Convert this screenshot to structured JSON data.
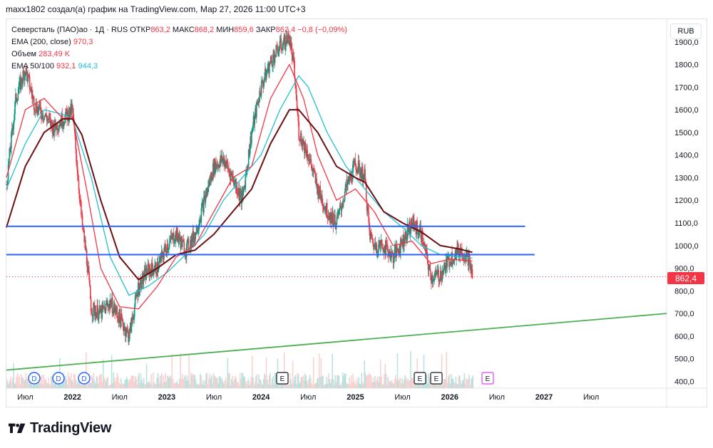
{
  "caption": "maxx1802 создал(а) график на TradingView.com, Мар 27, 2026 11:00 UTC+3",
  "legend": {
    "symbol": "Северсталь (ПАО)ао · 1Д · RUS",
    "open_label": "ОТКР",
    "open": "863,2",
    "high_label": "МАКС",
    "high": "868,2",
    "low_label": "МИН",
    "low": "859,6",
    "close_label": "ЗАКР",
    "close": "862,4",
    "change": "−0,8 (−0,09%)",
    "ema200_label": "EMA (200, close)",
    "ema200": "970,3",
    "volume_label": "Объем",
    "volume": "283,49 K",
    "ema50_100_label": "EMA 50/100",
    "ema50": "932,1",
    "ema100": "944,3"
  },
  "currency_button": "RUB",
  "last_price_tag": "862,4",
  "brand_text": "TradingView",
  "colors": {
    "price_up": "#089981",
    "price_down": "#f23645",
    "ema50": "#f23645",
    "ema100": "#22c0d6",
    "ema200": "#6d0f12",
    "level": "#2962ff",
    "trend": "#4caf50"
  },
  "event_markers": [
    {
      "label": "D",
      "x_label": "Jul 2021 area"
    },
    {
      "label": "D",
      "x_label": "Oct 2021 area"
    },
    {
      "label": "D",
      "x_label": "Dec 2021 area"
    },
    {
      "label": "E",
      "x_label": "Jul 2024 area"
    },
    {
      "label": "E",
      "x_label": "Oct 2025 area"
    },
    {
      "label": "E",
      "x_label": "Nov 2025 area"
    },
    {
      "label": "E",
      "x_label": "Mar 2026 area"
    }
  ],
  "chart_data": {
    "type": "line",
    "title": "Северсталь (ПАО)ао · 1Д · RUS",
    "y_axis": {
      "ticks": [
        "400,0",
        "500,0",
        "600,0",
        "700,0",
        "800,0",
        "900,0",
        "1000,0",
        "1100,0",
        "1200,0",
        "1300,0",
        "1400,0",
        "1500,0",
        "1600,0",
        "1700,0",
        "1800,0",
        "1900,0"
      ],
      "tick_values": [
        400,
        500,
        600,
        700,
        800,
        900,
        1000,
        1100,
        1200,
        1300,
        1400,
        1500,
        1600,
        1700,
        1800,
        1900
      ],
      "range": [
        370,
        2000
      ],
      "scale": "linear"
    },
    "x_axis": {
      "range": [
        2021.3,
        2028.3
      ],
      "ticks": [
        {
          "label": "Июл",
          "t": 2021.5,
          "year": false
        },
        {
          "label": "2022",
          "t": 2022.0,
          "year": true
        },
        {
          "label": "Июл",
          "t": 2022.5,
          "year": false
        },
        {
          "label": "2023",
          "t": 2023.0,
          "year": true
        },
        {
          "label": "Июл",
          "t": 2023.5,
          "year": false
        },
        {
          "label": "2024",
          "t": 2024.0,
          "year": true
        },
        {
          "label": "Июл",
          "t": 2024.5,
          "year": false
        },
        {
          "label": "2025",
          "t": 2025.0,
          "year": true
        },
        {
          "label": "Июл",
          "t": 2025.5,
          "year": false
        },
        {
          "label": "2026",
          "t": 2026.0,
          "year": true
        },
        {
          "label": "Июл",
          "t": 2026.5,
          "year": false
        },
        {
          "label": "2027",
          "t": 2027.0,
          "year": true
        },
        {
          "label": "Июл",
          "t": 2027.5,
          "year": false
        }
      ]
    },
    "series": [
      {
        "name": "Close",
        "t": [
          2021.3,
          2021.4,
          2021.5,
          2021.6,
          2021.7,
          2021.8,
          2021.9,
          2022.0,
          2022.1,
          2022.15,
          2022.2,
          2022.3,
          2022.4,
          2022.5,
          2022.6,
          2022.7,
          2022.8,
          2022.9,
          2023.0,
          2023.1,
          2023.2,
          2023.3,
          2023.4,
          2023.5,
          2023.6,
          2023.7,
          2023.8,
          2023.9,
          2024.0,
          2024.1,
          2024.2,
          2024.3,
          2024.35,
          2024.4,
          2024.5,
          2024.6,
          2024.7,
          2024.8,
          2024.9,
          2025.0,
          2025.1,
          2025.15,
          2025.2,
          2025.3,
          2025.4,
          2025.5,
          2025.6,
          2025.7,
          2025.8,
          2025.9,
          2026.0,
          2026.1,
          2026.15,
          2026.2,
          2026.24
        ],
        "values": [
          1270,
          1650,
          1780,
          1620,
          1580,
          1520,
          1560,
          1600,
          1100,
          950,
          720,
          700,
          750,
          680,
          600,
          820,
          890,
          900,
          1000,
          1050,
          980,
          1050,
          1200,
          1350,
          1380,
          1300,
          1200,
          1500,
          1700,
          1810,
          1880,
          1920,
          1780,
          1500,
          1400,
          1250,
          1150,
          1100,
          1250,
          1360,
          1300,
          1050,
          1000,
          1000,
          950,
          1020,
          1100,
          1050,
          860,
          870,
          940,
          980,
          970,
          940,
          862.4
        ]
      },
      {
        "name": "EMA 50",
        "t": [
          2021.3,
          2021.5,
          2021.7,
          2021.9,
          2022.0,
          2022.15,
          2022.3,
          2022.5,
          2022.7,
          2022.9,
          2023.1,
          2023.3,
          2023.5,
          2023.7,
          2023.9,
          2024.1,
          2024.3,
          2024.45,
          2024.6,
          2024.8,
          2025.0,
          2025.2,
          2025.4,
          2025.6,
          2025.8,
          2026.0,
          2026.24
        ],
        "values": [
          1300,
          1600,
          1650,
          1560,
          1570,
          1250,
          900,
          730,
          720,
          820,
          950,
          1000,
          1150,
          1300,
          1350,
          1650,
          1800,
          1650,
          1400,
          1200,
          1250,
          1150,
          1000,
          1020,
          920,
          940,
          932.1
        ]
      },
      {
        "name": "EMA 100",
        "t": [
          2021.3,
          2021.5,
          2021.7,
          2021.9,
          2022.0,
          2022.2,
          2022.4,
          2022.6,
          2022.8,
          2023.0,
          2023.2,
          2023.4,
          2023.6,
          2023.8,
          2024.0,
          2024.2,
          2024.4,
          2024.5,
          2024.7,
          2024.9,
          2025.1,
          2025.3,
          2025.5,
          2025.7,
          2025.9,
          2026.1,
          2026.24
        ],
        "values": [
          1250,
          1450,
          1600,
          1580,
          1560,
          1300,
          950,
          780,
          820,
          880,
          960,
          1050,
          1200,
          1300,
          1400,
          1600,
          1750,
          1700,
          1500,
          1350,
          1250,
          1150,
          1080,
          1000,
          960,
          950,
          944.3
        ]
      },
      {
        "name": "EMA 200",
        "t": [
          2021.3,
          2021.5,
          2021.7,
          2021.9,
          2022.0,
          2022.1,
          2022.3,
          2022.5,
          2022.7,
          2022.9,
          2023.1,
          2023.3,
          2023.5,
          2023.7,
          2023.9,
          2024.1,
          2024.3,
          2024.4,
          2024.6,
          2024.8,
          2025.0,
          2025.1,
          2025.3,
          2025.5,
          2025.7,
          2025.9,
          2026.1,
          2026.24
        ],
        "values": [
          1080,
          1350,
          1500,
          1560,
          1560,
          1490,
          1200,
          950,
          850,
          900,
          960,
          980,
          1050,
          1150,
          1250,
          1450,
          1600,
          1600,
          1500,
          1350,
          1300,
          1280,
          1150,
          1100,
          1060,
          1000,
          985,
          970.3
        ]
      },
      {
        "name": "Level 1",
        "t": [
          2021.3,
          2026.8
        ],
        "values": [
          1085,
          1085
        ]
      },
      {
        "name": "Level 2",
        "t": [
          2021.3,
          2026.9
        ],
        "values": [
          960,
          960
        ]
      },
      {
        "name": "Trend line",
        "t": [
          2021.3,
          2028.3
        ],
        "values": [
          450,
          700
        ]
      }
    ],
    "last_price": 862.4,
    "xlabel": "",
    "ylabel": ""
  }
}
